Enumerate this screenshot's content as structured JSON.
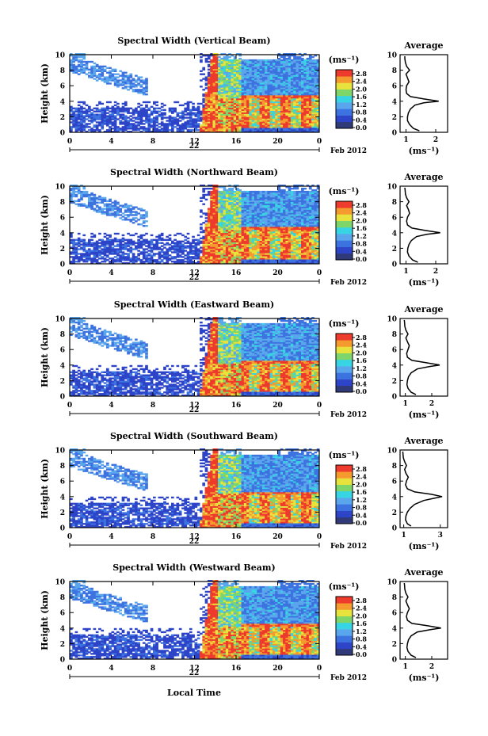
{
  "colors": {
    "white": "#ffffff",
    "navy": "#303a78",
    "blue": "#2d44c8",
    "mid_blue": "#3d73e0",
    "light_blue": "#5aa6ec",
    "cyan": "#37d4e4",
    "green": "#7ed66a",
    "yellow": "#e8e23c",
    "orange": "#f59a2e",
    "red": "#ee3a2c"
  },
  "common": {
    "y_label": "Height (km)",
    "x_ticks": [
      "0",
      "4",
      "8",
      "12",
      "16",
      "20",
      "0"
    ],
    "y_ticks": [
      "0",
      "2",
      "4",
      "6",
      "8",
      "10"
    ],
    "day_label": "22",
    "date_label": "Feb 2012",
    "colorbar_unit": "(ms⁻¹)",
    "colorbar_ticks": [
      "0.0",
      "0.4",
      "0.8",
      "1.2",
      "1.6",
      "2.0",
      "2.4",
      "2.8"
    ],
    "avg_title": "Average",
    "avg_xlabel": "(ms⁻¹)",
    "x_axis_title": "Local Time"
  },
  "chart_data": [
    {
      "type": "heatmap",
      "title": "Spectral Width (Vertical Beam)",
      "xlabel": "",
      "ylabel": "Height (km)",
      "xlim": [
        0,
        24
      ],
      "ylim": [
        0,
        10
      ],
      "colorbar_range": [
        0.0,
        2.8
      ],
      "boundary_layer_top_km": 4.5,
      "profile": {
        "type": "line",
        "title": "Average",
        "x_ticks": [
          "1",
          "2"
        ],
        "xlim": [
          0.8,
          2.4
        ],
        "height_km": [
          0.2,
          0.5,
          1.0,
          1.5,
          2.0,
          2.5,
          3.0,
          3.5,
          3.8,
          4.0,
          4.3,
          4.6,
          5.0,
          5.5,
          6.0,
          6.5,
          7.0,
          7.5,
          8.0,
          8.5,
          9.0,
          9.5,
          9.8
        ],
        "width": [
          1.45,
          1.25,
          1.12,
          1.05,
          1.05,
          1.08,
          1.15,
          1.3,
          1.6,
          2.1,
          1.6,
          1.15,
          1.02,
          1.0,
          1.02,
          1.1,
          1.05,
          1.0,
          1.12,
          1.02,
          0.98,
          0.96,
          0.96
        ]
      }
    },
    {
      "type": "heatmap",
      "title": "Spectral Width (Northward Beam)",
      "xlabel": "",
      "ylabel": "Height (km)",
      "xlim": [
        0,
        24
      ],
      "ylim": [
        0,
        10
      ],
      "colorbar_range": [
        0.0,
        2.8
      ],
      "boundary_layer_top_km": 4.5,
      "profile": {
        "type": "line",
        "title": "Average",
        "x_ticks": [
          "1",
          "2"
        ],
        "xlim": [
          0.8,
          2.4
        ],
        "height_km": [
          0.2,
          0.5,
          1.0,
          1.5,
          2.0,
          2.5,
          3.0,
          3.5,
          3.8,
          4.0,
          4.3,
          4.6,
          5.0,
          5.5,
          6.0,
          6.5,
          7.0,
          7.5,
          8.0,
          8.5,
          9.0,
          9.5,
          9.8
        ],
        "width": [
          1.4,
          1.22,
          1.1,
          1.05,
          1.06,
          1.1,
          1.18,
          1.35,
          1.7,
          2.15,
          1.65,
          1.2,
          1.05,
          1.02,
          1.05,
          1.12,
          1.08,
          1.02,
          1.1,
          1.02,
          0.98,
          0.97,
          0.96
        ]
      }
    },
    {
      "type": "heatmap",
      "title": "Spectral Width (Eastward Beam)",
      "xlabel": "",
      "ylabel": "Height (km)",
      "xlim": [
        0,
        24
      ],
      "ylim": [
        0,
        10
      ],
      "colorbar_range": [
        0.0,
        2.8
      ],
      "boundary_layer_top_km": 4.3,
      "profile": {
        "type": "line",
        "title": "Average",
        "x_ticks": [
          "1",
          "2"
        ],
        "xlim": [
          0.8,
          2.6
        ],
        "height_km": [
          0.2,
          0.5,
          1.0,
          1.5,
          2.0,
          2.5,
          3.0,
          3.5,
          3.8,
          4.0,
          4.3,
          4.6,
          5.0,
          5.5,
          6.0,
          6.5,
          7.0,
          7.5,
          8.0,
          8.5,
          9.0,
          9.5,
          9.8
        ],
        "width": [
          1.4,
          1.22,
          1.1,
          1.06,
          1.08,
          1.12,
          1.22,
          1.45,
          1.9,
          2.3,
          1.8,
          1.25,
          1.08,
          1.05,
          1.1,
          1.15,
          1.08,
          1.02,
          1.1,
          1.02,
          0.98,
          0.97,
          0.96
        ]
      }
    },
    {
      "type": "heatmap",
      "title": "Spectral Width (Southward Beam)",
      "xlabel": "",
      "ylabel": "Height (km)",
      "xlim": [
        0,
        24
      ],
      "ylim": [
        0,
        10
      ],
      "colorbar_range": [
        0.0,
        2.8
      ],
      "boundary_layer_top_km": 4.4,
      "profile": {
        "type": "line",
        "title": "Average",
        "x_ticks": [
          "1",
          "3"
        ],
        "xlim": [
          0.8,
          3.4
        ],
        "height_km": [
          0.2,
          0.5,
          1.0,
          1.5,
          2.0,
          2.5,
          3.0,
          3.5,
          3.8,
          4.0,
          4.3,
          4.6,
          5.0,
          5.5,
          6.0,
          6.5,
          7.0,
          7.5,
          8.0,
          8.5,
          9.0,
          9.5,
          9.8
        ],
        "width": [
          1.4,
          1.2,
          1.1,
          1.12,
          1.2,
          1.35,
          1.6,
          2.1,
          2.7,
          3.1,
          2.5,
          1.6,
          1.2,
          1.1,
          1.15,
          1.25,
          1.12,
          1.05,
          1.15,
          1.05,
          0.98,
          0.96,
          0.95
        ]
      }
    },
    {
      "type": "heatmap",
      "title": "Spectral Width (Westward Beam)",
      "xlabel": "",
      "ylabel": "Height (km)",
      "xlim": [
        0,
        24
      ],
      "ylim": [
        0,
        10
      ],
      "colorbar_range": [
        0.0,
        2.8
      ],
      "boundary_layer_top_km": 4.3,
      "profile": {
        "type": "line",
        "title": "Average",
        "x_ticks": [
          "1",
          "2"
        ],
        "xlim": [
          0.8,
          2.6
        ],
        "height_km": [
          0.2,
          0.5,
          1.0,
          1.5,
          2.0,
          2.5,
          3.0,
          3.5,
          3.8,
          4.0,
          4.3,
          4.6,
          5.0,
          5.5,
          6.0,
          6.5,
          7.0,
          7.5,
          8.0,
          8.5,
          9.0,
          9.5,
          9.8
        ],
        "width": [
          1.4,
          1.22,
          1.1,
          1.06,
          1.08,
          1.12,
          1.22,
          1.45,
          1.95,
          2.35,
          1.85,
          1.25,
          1.08,
          1.04,
          1.08,
          1.15,
          1.08,
          1.02,
          1.1,
          1.02,
          0.98,
          0.97,
          0.96
        ]
      }
    }
  ]
}
